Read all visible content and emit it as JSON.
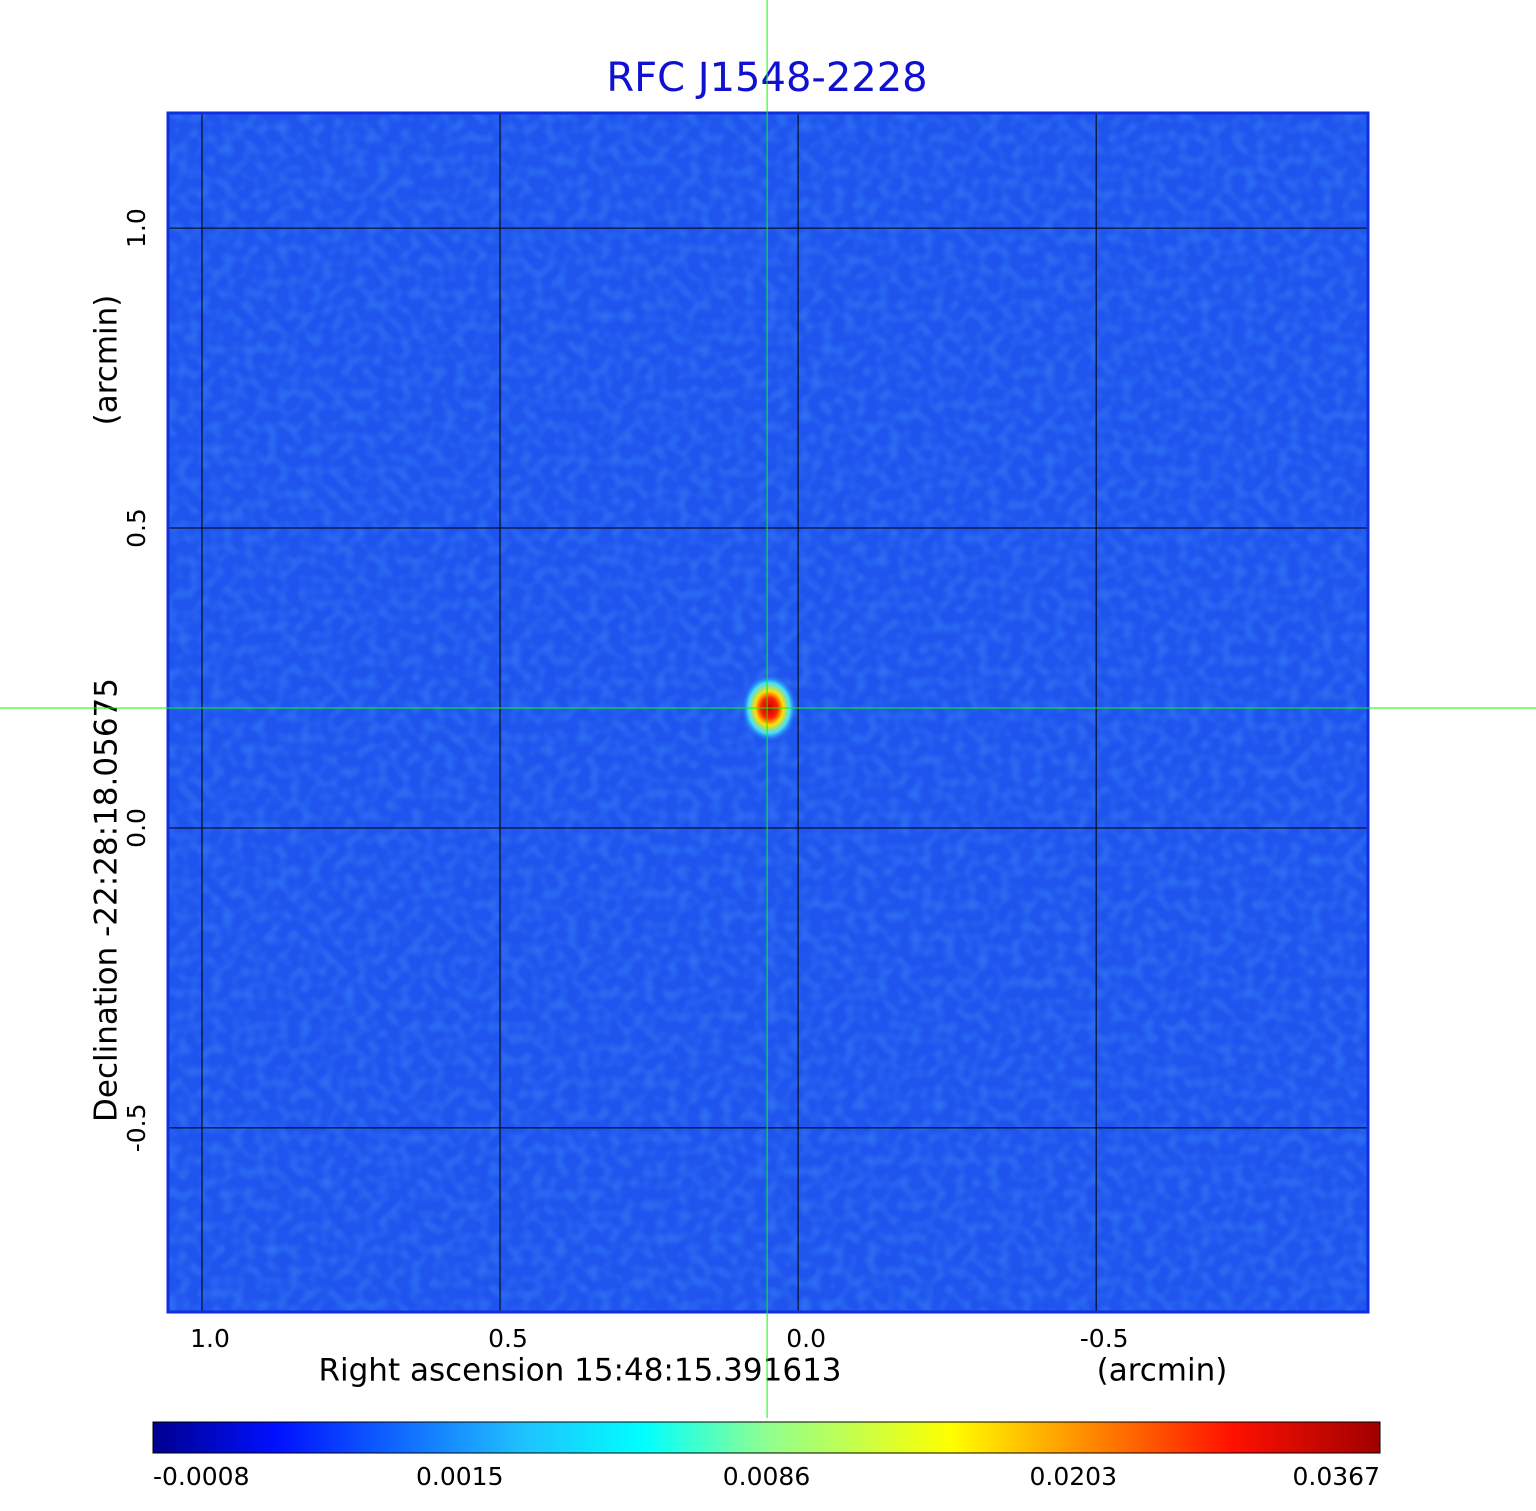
{
  "chart_data": {
    "type": "image",
    "title": "RFC J1548-2228",
    "xlabel": "Right ascension  15:48:15.391613",
    "xunit": "(arcmin)",
    "ylabel": "Declination  -22:28:18.05675",
    "yunit": "(arcmin)",
    "xlim": [
      1.057,
      -0.956
    ],
    "ylim": [
      -0.807,
      1.192
    ],
    "xticks": [
      {
        "value": 1.0,
        "label": "1.0"
      },
      0.5,
      {
        "value": 0.0,
        "label": "0.0"
      },
      -0.5
    ],
    "yticks": [
      {
        "value": 1.0,
        "label": "1.0"
      },
      0.5,
      {
        "value": 0.0,
        "label": "0.0"
      },
      -0.5
    ],
    "grid": true,
    "colormap": "jet",
    "crosshair": {
      "x": 0.052,
      "y": 0.2,
      "color": "#00ff00"
    },
    "colorbar_ticks": [
      -0.0008,
      0.0015,
      0.0086,
      0.0203,
      0.0367
    ]
  }
}
